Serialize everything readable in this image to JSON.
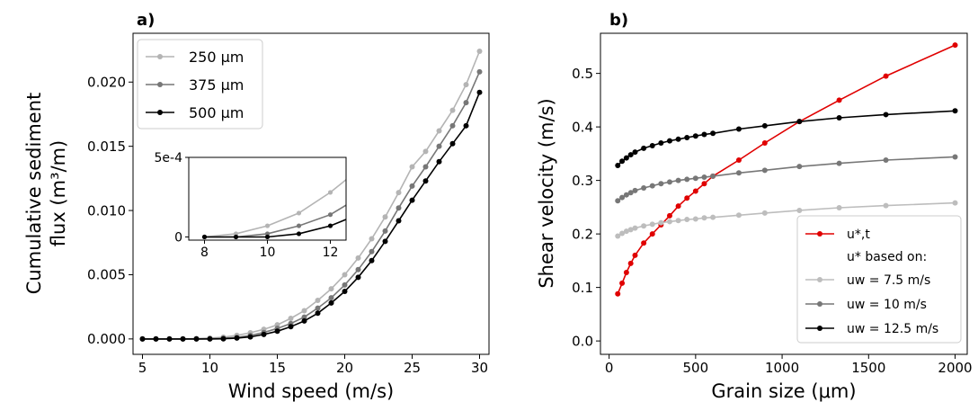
{
  "chart_data": [
    {
      "panel_label": "a)",
      "type": "line",
      "xlabel": "Wind speed (m/s)",
      "ylabel_line1": "Cumulative sediment",
      "ylabel_line2": "flux (m³/m)",
      "xlim": [
        4.3,
        30.7
      ],
      "ylim": [
        -0.0012,
        0.0238
      ],
      "xticks": [
        5,
        10,
        15,
        20,
        25,
        30
      ],
      "xtick_labels": [
        "5",
        "10",
        "15",
        "20",
        "25",
        "30"
      ],
      "yticks": [
        0.0,
        0.005,
        0.01,
        0.015,
        0.02
      ],
      "ytick_labels": [
        "0.000",
        "0.005",
        "0.010",
        "0.015",
        "0.020"
      ],
      "legend_position": "upper-left",
      "x": [
        5,
        6,
        7,
        8,
        9,
        10,
        11,
        12,
        13,
        14,
        15,
        16,
        17,
        18,
        19,
        20,
        21,
        22,
        23,
        24,
        25,
        26,
        27,
        28,
        29,
        30
      ],
      "series": [
        {
          "name": "250 μm",
          "color": "#b4b4b4",
          "values": [
            0,
            0,
            0,
            0,
            3e-05,
            7e-05,
            0.00014,
            0.00028,
            0.00048,
            0.00075,
            0.0011,
            0.0016,
            0.0022,
            0.003,
            0.0039,
            0.005,
            0.0063,
            0.0078,
            0.0095,
            0.0114,
            0.0134,
            0.0146,
            0.0162,
            0.0178,
            0.0198,
            0.0224
          ]
        },
        {
          "name": "375 μm",
          "color": "#777777",
          "values": [
            0,
            0,
            0,
            0,
            0,
            2e-05,
            5e-05,
            0.00012,
            0.00027,
            0.0005,
            0.00082,
            0.0012,
            0.0017,
            0.0024,
            0.0032,
            0.0042,
            0.0054,
            0.0068,
            0.0084,
            0.0102,
            0.0119,
            0.0134,
            0.015,
            0.0166,
            0.0184,
            0.0208
          ]
        },
        {
          "name": "500 μm",
          "color": "#000000",
          "values": [
            0,
            0,
            0,
            0,
            0,
            0,
            1e-05,
            7e-05,
            0.00016,
            0.00035,
            0.0006,
            0.00095,
            0.0014,
            0.002,
            0.0028,
            0.0037,
            0.0048,
            0.0061,
            0.0076,
            0.0092,
            0.0108,
            0.0123,
            0.0138,
            0.0152,
            0.0166,
            0.0192
          ]
        }
      ],
      "inset": {
        "xlim": [
          7.5,
          12.5
        ],
        "ylim": [
          -2e-05,
          0.0005
        ],
        "xticks": [
          8,
          10,
          12
        ],
        "xtick_labels": [
          "8",
          "10",
          "12"
        ],
        "yticks": [
          0,
          0.0005
        ],
        "ytick_labels": [
          "0",
          "5e-4"
        ],
        "x": [
          8,
          9,
          10,
          11,
          12,
          12.5
        ],
        "series": [
          {
            "name": "250 μm",
            "color": "#b4b4b4",
            "values": [
              0,
              2e-05,
              7e-05,
              0.00015,
              0.00028,
              0.00036
            ]
          },
          {
            "name": "375 μm",
            "color": "#777777",
            "values": [
              0,
              0,
              2e-05,
              7e-05,
              0.00014,
              0.0002
            ]
          },
          {
            "name": "500 μm",
            "color": "#000000",
            "values": [
              0,
              0,
              0,
              2e-05,
              7e-05,
              0.00011
            ]
          }
        ]
      }
    },
    {
      "panel_label": "b)",
      "type": "line",
      "xlabel": "Grain size (μm)",
      "ylabel": "Shear velocity (m/s)",
      "xlim": [
        -50,
        2070
      ],
      "ylim": [
        -0.025,
        0.575
      ],
      "xticks": [
        0,
        500,
        1000,
        1500,
        2000
      ],
      "xtick_labels": [
        "0",
        "500",
        "1000",
        "1500",
        "2000"
      ],
      "yticks": [
        0.0,
        0.1,
        0.2,
        0.3,
        0.4,
        0.5
      ],
      "ytick_labels": [
        "0.0",
        "0.1",
        "0.2",
        "0.3",
        "0.4",
        "0.5"
      ],
      "legend_position": "lower-right",
      "legend_subtitle": "u* based on:",
      "series": [
        {
          "name": "u*,t",
          "color": "#e00000",
          "x": [
            50,
            75,
            100,
            125,
            150,
            200,
            250,
            300,
            350,
            400,
            450,
            500,
            550,
            600,
            750,
            900,
            1100,
            1330,
            1600,
            2000
          ],
          "values": [
            0.088,
            0.108,
            0.128,
            0.145,
            0.16,
            0.183,
            0.2,
            0.217,
            0.234,
            0.252,
            0.267,
            0.28,
            0.294,
            0.308,
            0.338,
            0.37,
            0.41,
            0.45,
            0.495,
            0.553
          ]
        },
        {
          "name": "uw = 7.5 m/s",
          "color": "#bdbdbd",
          "x": [
            50,
            75,
            100,
            125,
            150,
            200,
            250,
            300,
            350,
            400,
            450,
            500,
            550,
            600,
            750,
            900,
            1100,
            1330,
            1600,
            2000
          ],
          "values": [
            0.196,
            0.201,
            0.205,
            0.208,
            0.211,
            0.215,
            0.218,
            0.221,
            0.223,
            0.225,
            0.227,
            0.228,
            0.23,
            0.231,
            0.235,
            0.239,
            0.244,
            0.249,
            0.253,
            0.258
          ]
        },
        {
          "name": "uw = 10 m/s",
          "color": "#777777",
          "x": [
            50,
            75,
            100,
            125,
            150,
            200,
            250,
            300,
            350,
            400,
            450,
            500,
            550,
            600,
            750,
            900,
            1100,
            1330,
            1600,
            2000
          ],
          "values": [
            0.262,
            0.268,
            0.273,
            0.277,
            0.281,
            0.286,
            0.29,
            0.294,
            0.297,
            0.3,
            0.302,
            0.304,
            0.306,
            0.308,
            0.314,
            0.319,
            0.326,
            0.332,
            0.338,
            0.344
          ]
        },
        {
          "name": "uw = 12.5 m/s",
          "color": "#000000",
          "x": [
            50,
            75,
            100,
            125,
            150,
            200,
            250,
            300,
            350,
            400,
            450,
            500,
            550,
            600,
            750,
            900,
            1100,
            1330,
            1600,
            2000
          ],
          "values": [
            0.328,
            0.336,
            0.342,
            0.348,
            0.353,
            0.36,
            0.365,
            0.37,
            0.374,
            0.377,
            0.38,
            0.383,
            0.386,
            0.388,
            0.396,
            0.402,
            0.41,
            0.417,
            0.423,
            0.43
          ]
        }
      ]
    }
  ]
}
